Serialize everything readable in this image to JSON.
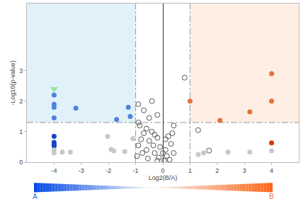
{
  "chart_data": {
    "type": "scatter",
    "x_label": "Log2(B/A)",
    "y_label": "-Log10(p-value)",
    "xlim": [
      -5,
      5
    ],
    "ylim": [
      0,
      5.2
    ],
    "xticks": [
      -4,
      -3,
      -2,
      -1,
      0,
      1,
      2,
      3,
      4
    ],
    "yticks": [
      0,
      1,
      2,
      3
    ],
    "x_thresholds": [
      -1,
      1
    ],
    "y_threshold": 1.3,
    "series": [
      {
        "color": "#4f82d9",
        "marker": "circle",
        "x": [
          -4,
          -4,
          -4,
          -3.2,
          -1.27,
          -1.2,
          -1.7,
          -4
        ],
        "y": [
          2.2,
          1.9,
          1.8,
          1.77,
          1.8,
          1.5,
          1.4,
          1.45
        ]
      },
      {
        "color": "#1846c4",
        "marker": "circle",
        "x": [
          -4,
          -4,
          -4,
          -4
        ],
        "y": [
          0.85,
          0.65,
          0.58,
          0.53
        ]
      },
      {
        "color": "#c8c8c8",
        "marker": "circle",
        "x": [
          -4,
          -4,
          -3.7,
          -3.4,
          -2.03,
          -1.9,
          -1.8,
          -1.4,
          -1.1,
          1.3,
          1.5,
          2.4,
          3.2,
          4
        ],
        "y": [
          0.4,
          0.3,
          0.33,
          0.33,
          0.84,
          0.42,
          0.37,
          0.35,
          0.77,
          0.25,
          0.3,
          0.33,
          0.33,
          0.37
        ]
      },
      {
        "color": "#e8703a",
        "marker": "circle",
        "x": [
          4,
          4,
          3.2,
          2.1,
          1.0
        ],
        "y": [
          2.9,
          2.0,
          1.65,
          1.37,
          2.0
        ]
      },
      {
        "color": "#d93a00",
        "marker": "circle",
        "x": [
          4
        ],
        "y": [
          0.63
        ]
      },
      {
        "color": "#555555",
        "marker": "circle-open",
        "x": [
          0.8,
          -0.4,
          -0.9,
          -0.2,
          -0.7,
          -0.5,
          -0.9,
          -0.85,
          0.4,
          0.2,
          0.35,
          0.1,
          1.3,
          1.7,
          -0.6,
          -0.4,
          -0.3,
          -0.2,
          -0.7,
          -0.8,
          -0.5,
          -0.35,
          -0.1,
          0.1,
          0.3,
          0.15,
          0.0,
          -0.15,
          -0.3,
          -0.6,
          -0.9,
          -0.95,
          -0.55,
          0.25,
          0.4,
          -0.75,
          -0.2,
          0.05
        ],
        "y": [
          2.77,
          2.0,
          1.9,
          1.55,
          1.7,
          1.45,
          1.3,
          1.2,
          1.2,
          0.85,
          0.95,
          0.75,
          1.05,
          0.38,
          1.1,
          1.0,
          0.9,
          0.8,
          0.95,
          0.75,
          0.7,
          0.55,
          0.5,
          0.4,
          0.6,
          0.2,
          0.3,
          0.15,
          0.3,
          0.4,
          0.55,
          0.2,
          0.12,
          0.08,
          0.3,
          0.3,
          0.05,
          0.05
        ]
      },
      {
        "color": "#9be39b",
        "marker": "triangle-down",
        "x": [
          -4
        ],
        "y": [
          2.4
        ]
      }
    ],
    "annotations": [
      {
        "text": "A",
        "color": "#2a6ed8"
      },
      {
        "text": "B",
        "color": "#f07a3a"
      }
    ]
  }
}
